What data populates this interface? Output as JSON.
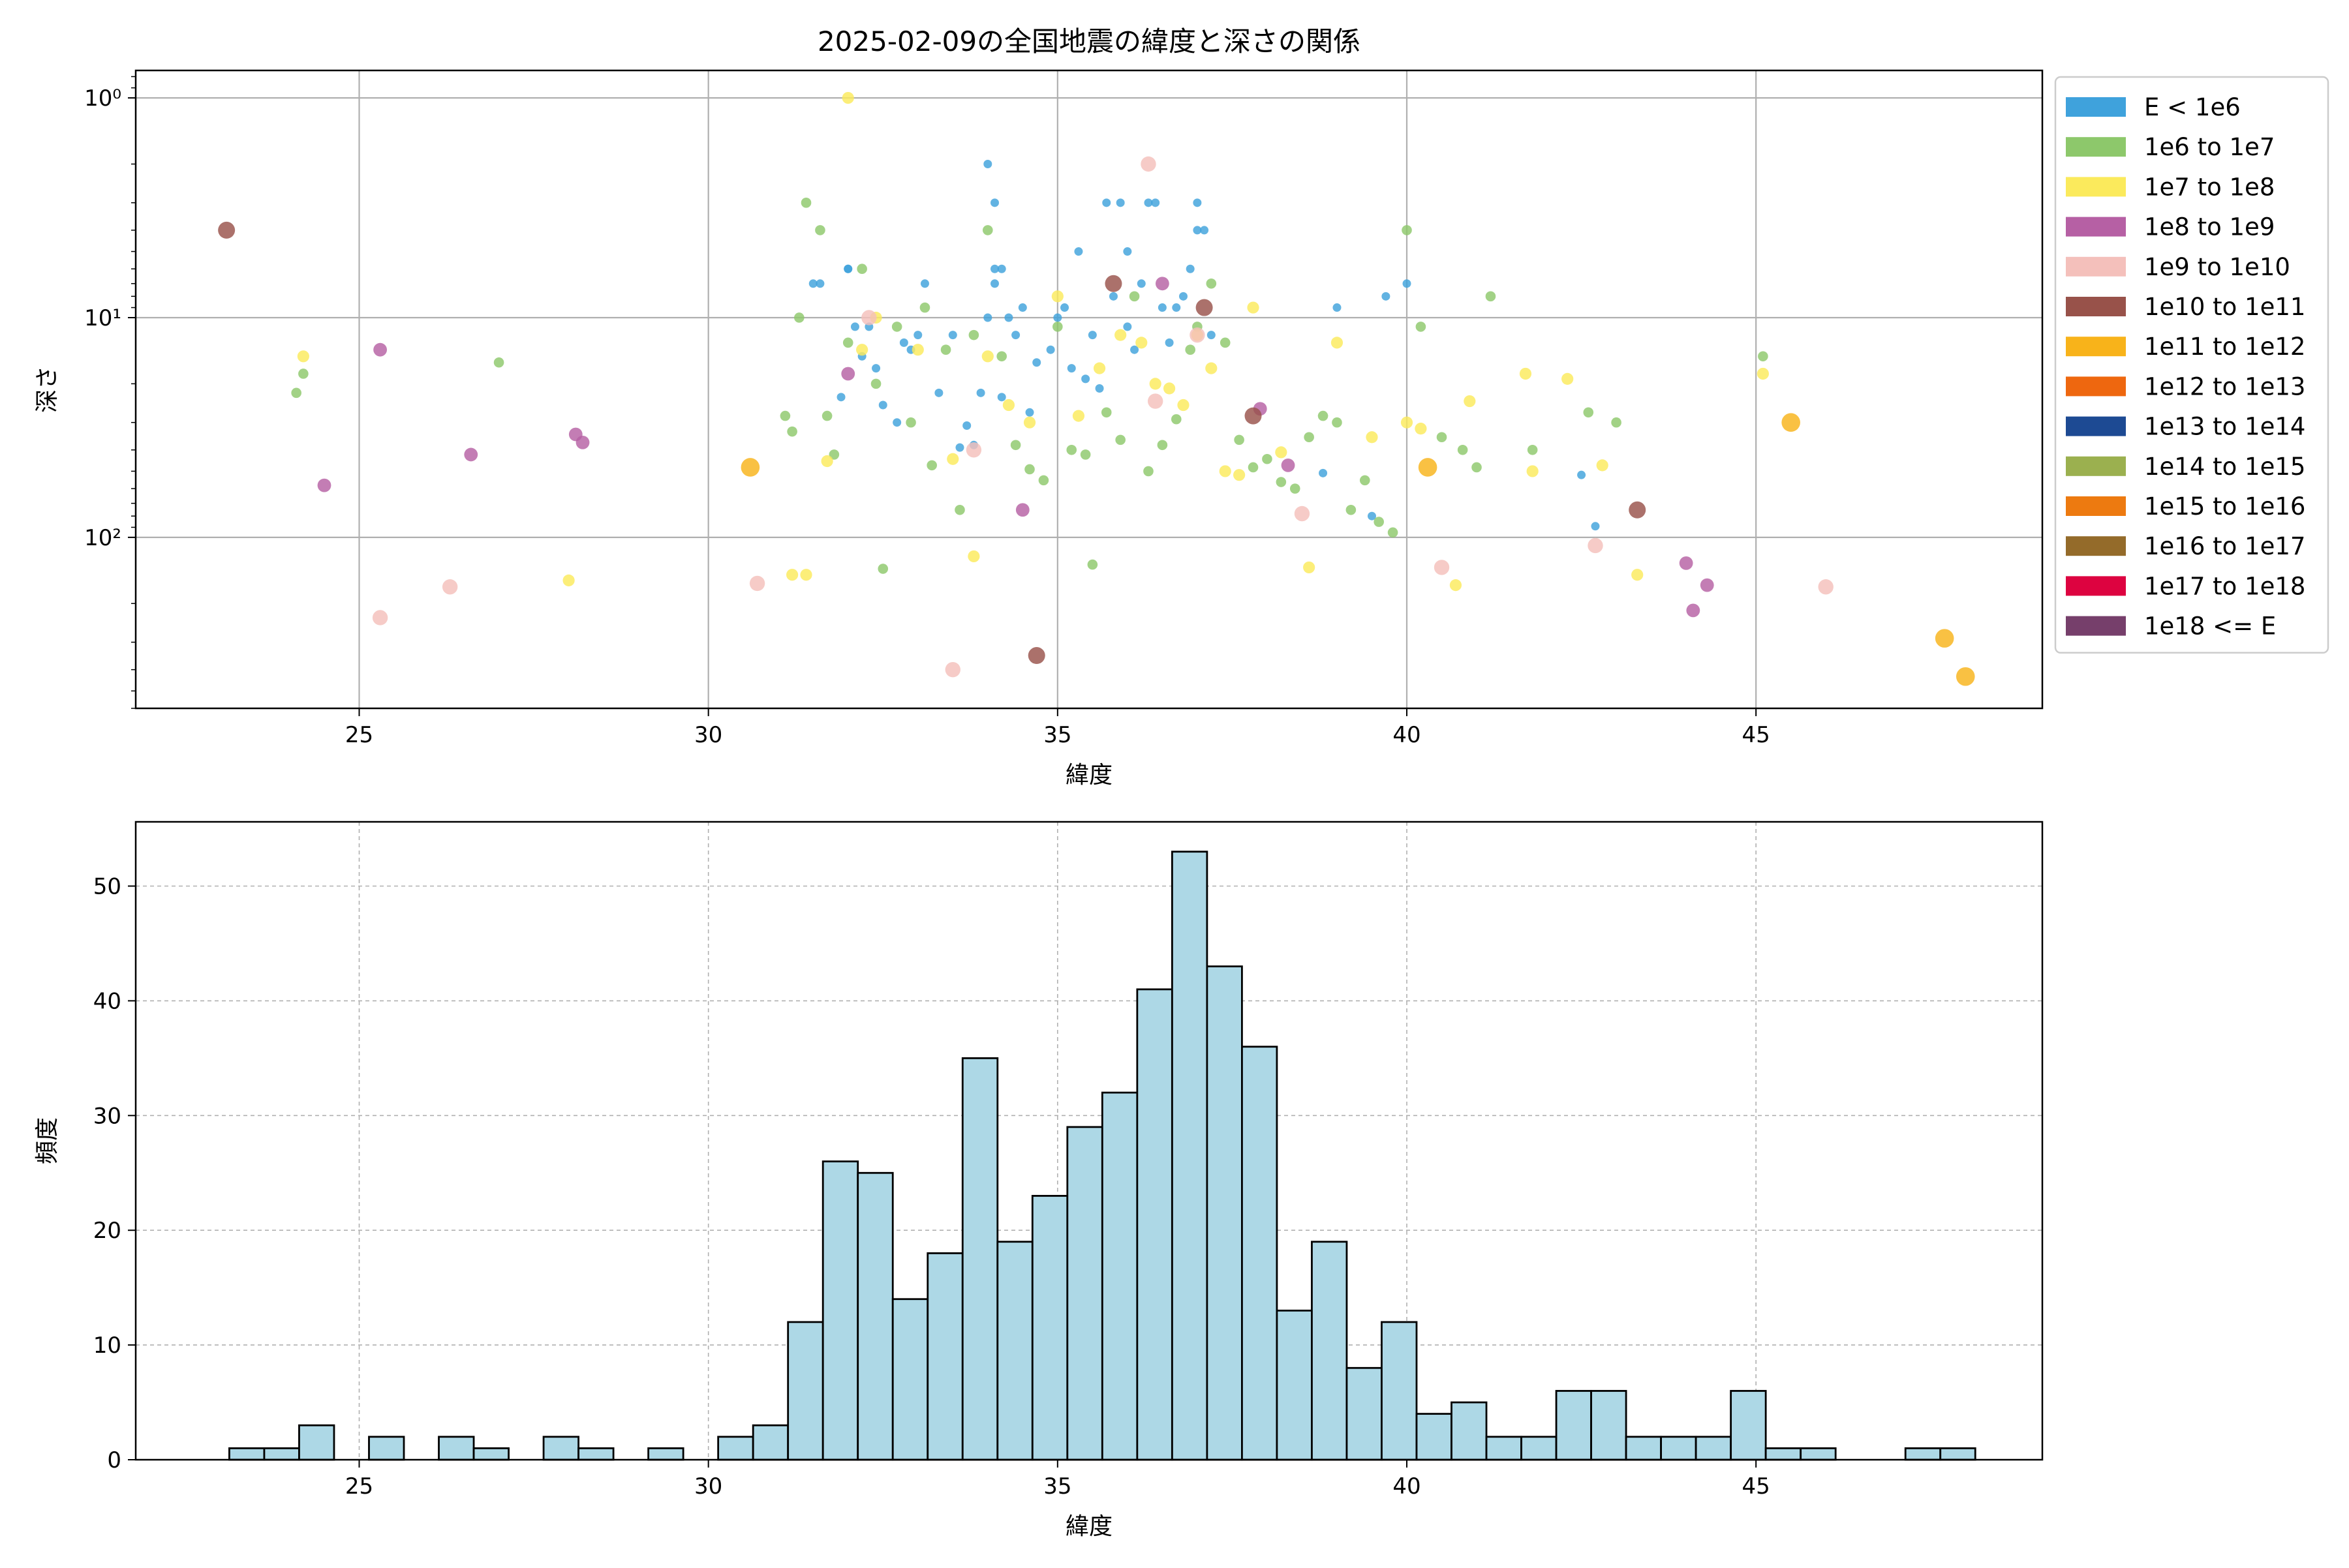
{
  "chart_data": [
    {
      "type": "scatter",
      "title": "2025-02-09の全国地震の緯度と深さの関係",
      "xlabel": "緯度",
      "ylabel": "深さ",
      "xlim": [
        21.8,
        49.1
      ],
      "ylim": [
        600,
        0.75
      ],
      "yscale": "log",
      "y_inverted": true,
      "grid": true,
      "xticks": [
        25,
        30,
        35,
        40,
        45
      ],
      "yticks": [
        {
          "value": 1,
          "label": "10⁰"
        },
        {
          "value": 10,
          "label": "10¹"
        },
        {
          "value": 100,
          "label": "10²"
        }
      ],
      "legend_position": "outside-right-top",
      "legend": [
        {
          "label": "E < 1e6",
          "color": "#3fa2dc"
        },
        {
          "label": "1e6 to 1e7",
          "color": "#8dc86b"
        },
        {
          "label": "1e7 to 1e8",
          "color": "#fbea5c"
        },
        {
          "label": "1e8 to 1e9",
          "color": "#b660a4"
        },
        {
          "label": "1e9 to 1e10",
          "color": "#f4c0bb"
        },
        {
          "label": "1e10 to 1e11",
          "color": "#98524a"
        },
        {
          "label": "1e11 to 1e12",
          "color": "#f8b31a"
        },
        {
          "label": "1e12 to 1e13",
          "color": "#ee670f"
        },
        {
          "label": "1e13 to 1e14",
          "color": "#1d4a93"
        },
        {
          "label": "1e14 to 1e15",
          "color": "#9bb04f"
        },
        {
          "label": "1e15 to 1e16",
          "color": "#ed7a10"
        },
        {
          "label": "1e16 to 1e17",
          "color": "#946b2a"
        },
        {
          "label": "1e17 to 1e18",
          "color": "#dd0340"
        },
        {
          "label": "1e18 <= E",
          "color": "#763f6b"
        }
      ],
      "series": [
        {
          "legend_index": 0,
          "points": [
            [
              31.5,
              7
            ],
            [
              31.6,
              7
            ],
            [
              31.9,
              23
            ],
            [
              32.0,
              6
            ],
            [
              32.0,
              6
            ],
            [
              32.1,
              11
            ],
            [
              32.2,
              15
            ],
            [
              32.3,
              11
            ],
            [
              32.4,
              17
            ],
            [
              32.5,
              25
            ],
            [
              32.7,
              30
            ],
            [
              32.8,
              13
            ],
            [
              32.9,
              14
            ],
            [
              33.0,
              12
            ],
            [
              33.1,
              7
            ],
            [
              33.3,
              22
            ],
            [
              33.5,
              12
            ],
            [
              33.6,
              39
            ],
            [
              33.7,
              31
            ],
            [
              33.8,
              38
            ],
            [
              33.9,
              22
            ],
            [
              34.0,
              10
            ],
            [
              34.0,
              2
            ],
            [
              34.1,
              3
            ],
            [
              34.1,
              6
            ],
            [
              34.1,
              7
            ],
            [
              34.2,
              6
            ],
            [
              34.2,
              23
            ],
            [
              34.3,
              10
            ],
            [
              34.4,
              12
            ],
            [
              34.5,
              9
            ],
            [
              34.6,
              27
            ],
            [
              34.7,
              16
            ],
            [
              34.9,
              14
            ],
            [
              35.0,
              10
            ],
            [
              35.1,
              9
            ],
            [
              35.2,
              17
            ],
            [
              35.3,
              5
            ],
            [
              35.4,
              19
            ],
            [
              35.5,
              12
            ],
            [
              35.6,
              21
            ],
            [
              35.7,
              3
            ],
            [
              35.8,
              8
            ],
            [
              35.9,
              3
            ],
            [
              36.0,
              11
            ],
            [
              36.0,
              5
            ],
            [
              36.1,
              14
            ],
            [
              36.2,
              7
            ],
            [
              36.3,
              3
            ],
            [
              36.4,
              3
            ],
            [
              36.5,
              9
            ],
            [
              36.6,
              13
            ],
            [
              36.7,
              9
            ],
            [
              36.8,
              8
            ],
            [
              36.9,
              6
            ],
            [
              37.0,
              3
            ],
            [
              37.0,
              4
            ],
            [
              37.1,
              4
            ],
            [
              37.2,
              12
            ],
            [
              38.8,
              51
            ],
            [
              39.0,
              9
            ],
            [
              39.5,
              80
            ],
            [
              39.7,
              8
            ],
            [
              40.0,
              7
            ],
            [
              42.5,
              52
            ],
            [
              42.7,
              89
            ]
          ]
        },
        {
          "legend_index": 1,
          "points": [
            [
              24.1,
              22
            ],
            [
              24.2,
              18
            ],
            [
              27.0,
              16
            ],
            [
              31.1,
              28
            ],
            [
              31.2,
              33
            ],
            [
              31.3,
              10
            ],
            [
              31.4,
              3
            ],
            [
              31.6,
              4
            ],
            [
              31.7,
              28
            ],
            [
              31.8,
              42
            ],
            [
              32.0,
              13
            ],
            [
              32.2,
              6
            ],
            [
              32.4,
              20
            ],
            [
              32.5,
              139
            ],
            [
              32.7,
              11
            ],
            [
              32.9,
              30
            ],
            [
              33.1,
              9
            ],
            [
              33.2,
              47
            ],
            [
              33.4,
              14
            ],
            [
              33.6,
              75
            ],
            [
              33.8,
              12
            ],
            [
              34.0,
              4
            ],
            [
              34.2,
              15
            ],
            [
              34.4,
              38
            ],
            [
              34.6,
              49
            ],
            [
              34.8,
              55
            ],
            [
              35.0,
              11
            ],
            [
              35.2,
              40
            ],
            [
              35.4,
              42
            ],
            [
              35.5,
              133
            ],
            [
              35.7,
              27
            ],
            [
              35.9,
              36
            ],
            [
              36.1,
              8
            ],
            [
              36.3,
              50
            ],
            [
              36.5,
              38
            ],
            [
              36.7,
              29
            ],
            [
              36.9,
              14
            ],
            [
              37.0,
              11
            ],
            [
              37.2,
              7
            ],
            [
              37.4,
              13
            ],
            [
              37.6,
              36
            ],
            [
              37.8,
              48
            ],
            [
              38.0,
              44
            ],
            [
              38.2,
              56
            ],
            [
              38.4,
              60
            ],
            [
              38.6,
              35
            ],
            [
              38.8,
              28
            ],
            [
              39.0,
              30
            ],
            [
              39.2,
              75
            ],
            [
              39.4,
              55
            ],
            [
              39.6,
              85
            ],
            [
              39.8,
              95
            ],
            [
              40.0,
              4
            ],
            [
              40.2,
              11
            ],
            [
              40.5,
              35
            ],
            [
              40.8,
              40
            ],
            [
              41.0,
              48
            ],
            [
              41.2,
              8
            ],
            [
              41.8,
              40
            ],
            [
              42.6,
              27
            ],
            [
              43.0,
              30
            ],
            [
              45.1,
              15
            ]
          ]
        },
        {
          "legend_index": 2,
          "points": [
            [
              24.2,
              15
            ],
            [
              28.0,
              157
            ],
            [
              31.2,
              148
            ],
            [
              31.4,
              148
            ],
            [
              31.7,
              45
            ],
            [
              32.0,
              1
            ],
            [
              32.2,
              14
            ],
            [
              32.4,
              10
            ],
            [
              33.0,
              14
            ],
            [
              33.5,
              44
            ],
            [
              33.8,
              122
            ],
            [
              34.0,
              15
            ],
            [
              34.3,
              25
            ],
            [
              34.6,
              30
            ],
            [
              35.0,
              8
            ],
            [
              35.3,
              28
            ],
            [
              35.6,
              17
            ],
            [
              35.9,
              12
            ],
            [
              36.2,
              13
            ],
            [
              36.4,
              20
            ],
            [
              36.6,
              21
            ],
            [
              36.8,
              25
            ],
            [
              37.0,
              12
            ],
            [
              37.2,
              17
            ],
            [
              37.4,
              50
            ],
            [
              37.6,
              52
            ],
            [
              37.8,
              9
            ],
            [
              38.2,
              41
            ],
            [
              38.6,
              137
            ],
            [
              39.0,
              13
            ],
            [
              39.5,
              35
            ],
            [
              40.0,
              30
            ],
            [
              40.2,
              32
            ],
            [
              40.7,
              165
            ],
            [
              40.9,
              24
            ],
            [
              41.7,
              18
            ],
            [
              41.8,
              50
            ],
            [
              42.3,
              19
            ],
            [
              42.8,
              47
            ],
            [
              43.3,
              148
            ],
            [
              45.1,
              18
            ]
          ]
        },
        {
          "legend_index": 3,
          "points": [
            [
              24.5,
              58
            ],
            [
              25.3,
              14
            ],
            [
              26.6,
              42
            ],
            [
              28.1,
              34
            ],
            [
              28.2,
              37
            ],
            [
              32.0,
              18
            ],
            [
              34.5,
              75
            ],
            [
              36.5,
              7
            ],
            [
              37.9,
              26
            ],
            [
              38.3,
              47
            ],
            [
              44.0,
              131
            ],
            [
              44.1,
              215
            ],
            [
              44.3,
              165
            ]
          ]
        },
        {
          "legend_index": 4,
          "points": [
            [
              25.3,
              232
            ],
            [
              26.3,
              168
            ],
            [
              30.7,
              162
            ],
            [
              32.3,
              10
            ],
            [
              33.5,
              400
            ],
            [
              33.8,
              40
            ],
            [
              36.3,
              2
            ],
            [
              36.4,
              24
            ],
            [
              37.0,
              12
            ],
            [
              38.5,
              78
            ],
            [
              40.5,
              137
            ],
            [
              42.7,
              109
            ],
            [
              46.0,
              168
            ]
          ]
        },
        {
          "legend_index": 5,
          "points": [
            [
              23.1,
              4
            ],
            [
              34.7,
              345
            ],
            [
              35.8,
              7
            ],
            [
              37.1,
              9
            ],
            [
              37.8,
              28
            ],
            [
              43.3,
              75
            ]
          ]
        },
        {
          "legend_index": 6,
          "points": [
            [
              30.6,
              48
            ],
            [
              40.3,
              48
            ],
            [
              45.5,
              30
            ],
            [
              47.7,
              288
            ],
            [
              48.0,
              430
            ]
          ]
        }
      ]
    },
    {
      "type": "bar",
      "xlabel": "緯度",
      "ylabel": "頻度",
      "xlim": [
        21.8,
        49.1
      ],
      "ylim": [
        0,
        55.6
      ],
      "grid": true,
      "grid_style": "dashed",
      "bar_color": "#add8e6",
      "edge_color": "#000000",
      "xticks": [
        25,
        30,
        35,
        40,
        45
      ],
      "yticks": [
        0,
        10,
        20,
        30,
        40,
        50
      ],
      "bin_start": 23.14,
      "bin_width": 0.5,
      "values": [
        1,
        1,
        3,
        0,
        2,
        0,
        2,
        1,
        0,
        2,
        1,
        0,
        1,
        0,
        2,
        3,
        12,
        26,
        25,
        14,
        18,
        35,
        19,
        23,
        29,
        32,
        41,
        53,
        43,
        36,
        13,
        19,
        8,
        12,
        4,
        5,
        2,
        2,
        6,
        6,
        2,
        2,
        2,
        6,
        1,
        1,
        0,
        0,
        1,
        1
      ]
    }
  ]
}
